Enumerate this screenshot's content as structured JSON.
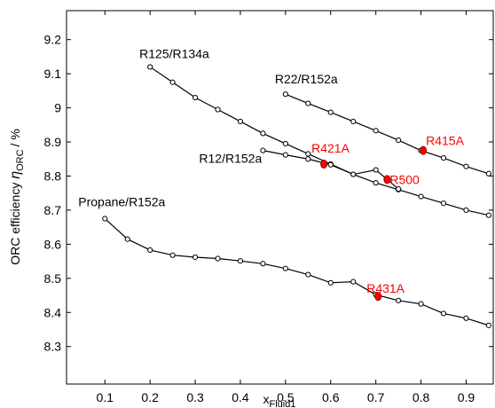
{
  "chart_data": {
    "type": "line",
    "xlabel": [
      "x",
      "Fluid1"
    ],
    "ylabel": [
      "ORC efficiency ",
      "η",
      "ORC",
      "/ %"
    ],
    "xlim": [
      0.015,
      0.96
    ],
    "ylim": [
      8.19,
      9.285
    ],
    "xticks": [
      0.1,
      0.2,
      0.3,
      0.4,
      0.5,
      0.6,
      0.7,
      0.8,
      0.9
    ],
    "yticks": [
      8.3,
      8.4,
      8.5,
      8.6,
      8.7,
      8.8,
      8.9,
      9,
      9.1,
      9.2
    ],
    "series": [
      {
        "name": "R125/R134a",
        "color": "#000000",
        "x": [
          0.2,
          0.25,
          0.3,
          0.35,
          0.4,
          0.45,
          0.5,
          0.55,
          0.6,
          0.65,
          0.7,
          0.75,
          0.8,
          0.85,
          0.9,
          0.95
        ],
        "values": [
          9.12,
          9.075,
          9.03,
          8.995,
          8.96,
          8.925,
          8.895,
          8.865,
          8.835,
          8.805,
          8.78,
          8.76,
          8.74,
          8.72,
          8.7,
          8.685
        ]
      },
      {
        "name": "R22/R152a",
        "color": "#000000",
        "x": [
          0.5,
          0.55,
          0.6,
          0.65,
          0.7,
          0.75,
          0.8,
          0.85,
          0.9,
          0.95
        ],
        "values": [
          9.04,
          9.013,
          8.987,
          8.96,
          8.933,
          8.905,
          8.875,
          8.853,
          8.828,
          8.807
        ]
      },
      {
        "name": "R12/R152a",
        "color": "#000000",
        "x": [
          0.45,
          0.5,
          0.55,
          0.6,
          0.65,
          0.7,
          0.75
        ],
        "values": [
          8.875,
          8.862,
          8.85,
          8.833,
          8.805,
          8.818,
          8.762
        ]
      },
      {
        "name": "Propane/R152a",
        "color": "#000000",
        "x": [
          0.1,
          0.15,
          0.2,
          0.25,
          0.3,
          0.35,
          0.4,
          0.45,
          0.5,
          0.55,
          0.6,
          0.65,
          0.7,
          0.75,
          0.8,
          0.85,
          0.9,
          0.95
        ],
        "values": [
          8.675,
          8.615,
          8.583,
          8.568,
          8.562,
          8.558,
          8.551,
          8.543,
          8.529,
          8.511,
          8.487,
          8.49,
          8.452,
          8.435,
          8.425,
          8.397,
          8.383,
          8.362
        ]
      }
    ],
    "highlights": {
      "color": "#ff0000",
      "points": [
        {
          "label": "R421A",
          "x": 0.585,
          "y": 8.835
        },
        {
          "label": "R415A",
          "x": 0.805,
          "y": 8.875
        },
        {
          "label": "R500",
          "x": 0.725,
          "y": 8.79
        },
        {
          "label": "R431A",
          "x": 0.705,
          "y": 8.447
        }
      ]
    }
  }
}
